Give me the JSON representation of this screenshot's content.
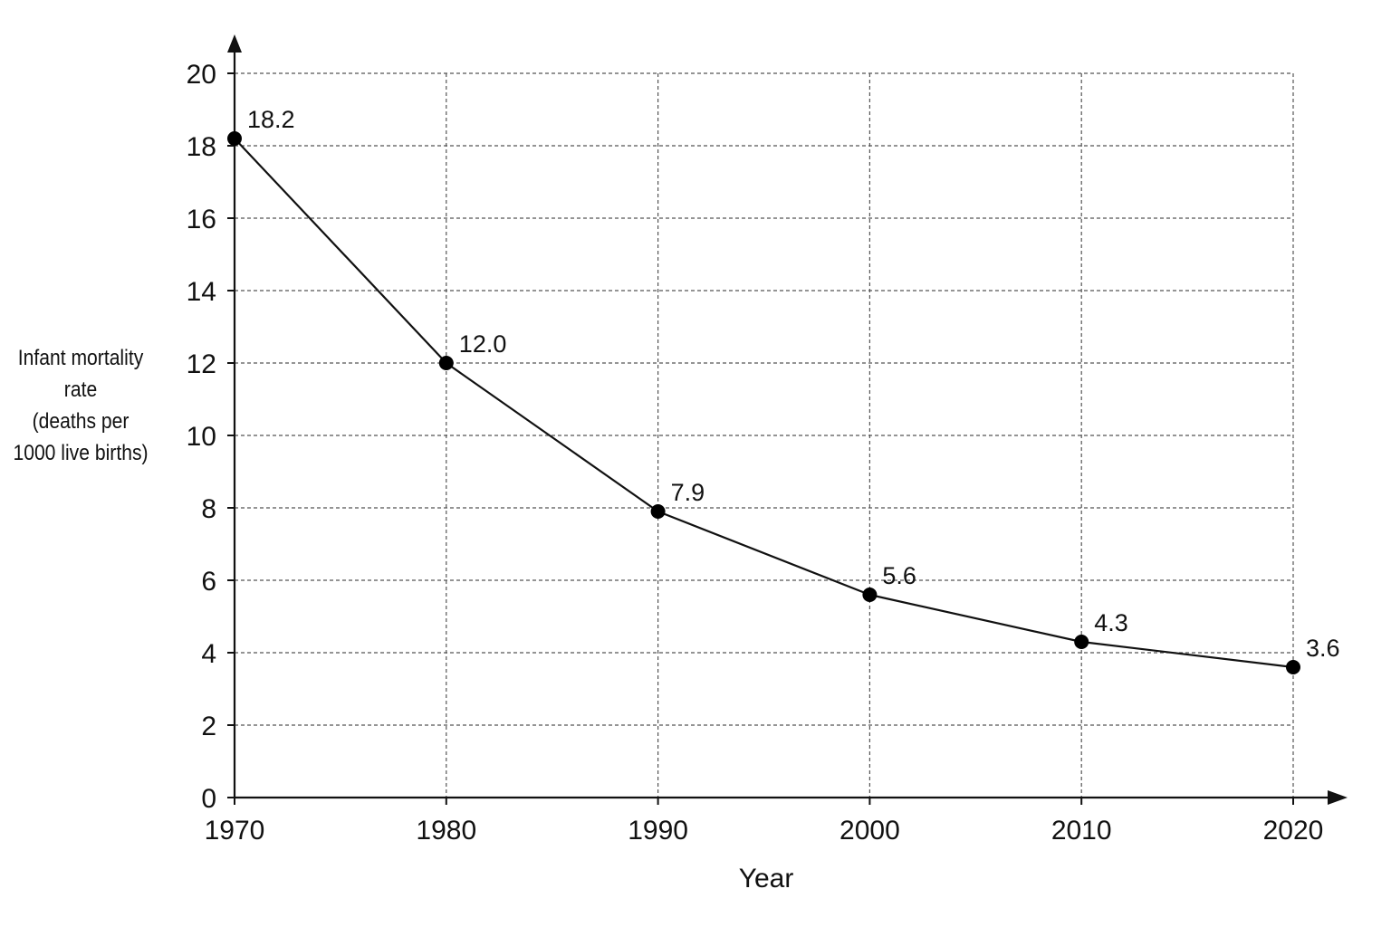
{
  "chart_data": {
    "type": "line",
    "x": [
      1970,
      1980,
      1990,
      2000,
      2010,
      2020
    ],
    "series": [
      {
        "values": [
          18.2,
          12.0,
          7.9,
          5.6,
          4.3,
          3.6
        ]
      }
    ],
    "data_labels": [
      "18.2",
      "12.0",
      "7.9",
      "5.6",
      "4.3",
      "3.6"
    ],
    "xlabel": "Year",
    "ylabel_lines": [
      "Infant mortality",
      "rate",
      "(deaths per",
      "1000 live births)"
    ],
    "xticks": [
      "1970",
      "1980",
      "1990",
      "2000",
      "2010",
      "2020"
    ],
    "yticks": [
      "0",
      "2",
      "4",
      "6",
      "8",
      "10",
      "12",
      "14",
      "16",
      "18",
      "20"
    ],
    "xlim": [
      1970,
      2020
    ],
    "ylim": [
      0,
      20
    ],
    "grid": true,
    "grid_style": "dashed",
    "line_color": "#111111",
    "marker_color": "#000000",
    "grid_color": "#555555"
  }
}
